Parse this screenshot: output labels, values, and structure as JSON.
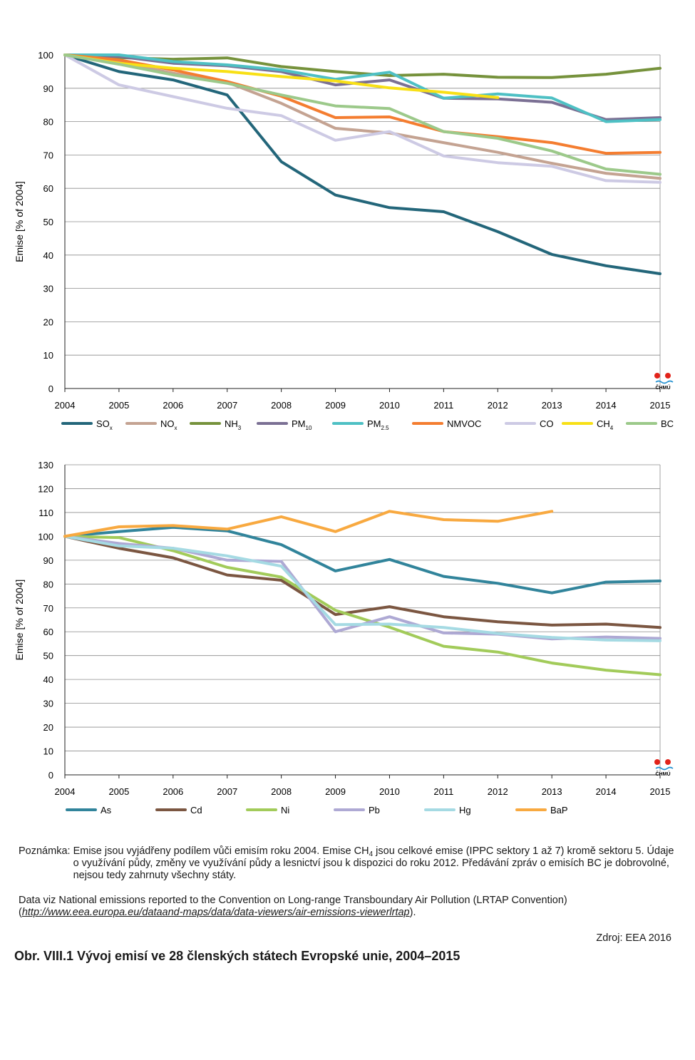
{
  "chart_data": [
    {
      "type": "line",
      "ylabel": "Emise  [% of 2004]",
      "ylim": [
        0,
        100
      ],
      "yticks": [
        0,
        10,
        20,
        30,
        40,
        50,
        60,
        70,
        80,
        90,
        100
      ],
      "x": [
        "2004",
        "2005",
        "2006",
        "2007",
        "2008",
        "2009",
        "2010",
        "2011",
        "2012",
        "2013",
        "2014",
        "2015"
      ],
      "grid": true,
      "legend_position": "bottom",
      "series": [
        {
          "name": "SO",
          "sub": "x",
          "color": "#23667a",
          "values": [
            100,
            95,
            92.5,
            88,
            68,
            58,
            54.2,
            53,
            47,
            40.2,
            36.8,
            34.4
          ]
        },
        {
          "name": "NO",
          "sub": "x",
          "color": "#c4a392",
          "values": [
            100,
            97.8,
            94.5,
            91.8,
            85.5,
            78,
            76.6,
            73.7,
            70.8,
            67.5,
            64.5,
            63
          ]
        },
        {
          "name": "NH",
          "sub": "3",
          "color": "#76923c",
          "values": [
            100,
            99.2,
            98.7,
            99.1,
            96.5,
            95,
            93.8,
            94.2,
            93.3,
            93.2,
            94.2,
            96
          ]
        },
        {
          "name": "PM",
          "sub": "10",
          "color": "#7b7094",
          "values": [
            100,
            99.5,
            97.5,
            96.7,
            95,
            91,
            92.5,
            87,
            86.8,
            85.8,
            80.6,
            81.2
          ]
        },
        {
          "name": "PM",
          "sub": "2.5",
          "color": "#4ec0c4",
          "values": [
            100,
            100,
            98,
            97,
            95.5,
            92.7,
            94.8,
            87,
            88.3,
            87.1,
            80,
            80.6
          ]
        },
        {
          "name": "NMVOC",
          "sub": "",
          "color": "#f47d30",
          "values": [
            100,
            98.5,
            95.5,
            92,
            87.6,
            81.2,
            81.4,
            77,
            75.5,
            73.7,
            70.5,
            70.8
          ]
        },
        {
          "name": "CO",
          "sub": "",
          "color": "#cdcae4",
          "values": [
            100,
            91,
            87.5,
            84,
            81.8,
            74.4,
            77,
            69.7,
            67.7,
            66.6,
            62.3,
            61.8
          ]
        },
        {
          "name": "CH",
          "sub": "4",
          "color": "#f8e016",
          "values": [
            100,
            97.5,
            96,
            95,
            93.5,
            92.2,
            90.1,
            88.8,
            87.2,
            null,
            null,
            null
          ]
        },
        {
          "name": "BC",
          "sub": "",
          "color": "#9cc98a",
          "values": [
            100,
            97.2,
            94,
            91.5,
            88,
            84.7,
            83.9,
            77,
            75,
            71.2,
            65.8,
            64.2
          ]
        }
      ]
    },
    {
      "type": "line",
      "ylabel": "Emise [% of 2004]",
      "ylim": [
        0,
        130
      ],
      "yticks": [
        0,
        10,
        20,
        30,
        40,
        50,
        60,
        70,
        80,
        90,
        100,
        110,
        120,
        130
      ],
      "x": [
        "2004",
        "2005",
        "2006",
        "2007",
        "2008",
        "2009",
        "2010",
        "2011",
        "2012",
        "2013",
        "2014",
        "2015"
      ],
      "grid": true,
      "legend_position": "bottom",
      "series": [
        {
          "name": "As",
          "color": "#31849b",
          "values": [
            100,
            102,
            103.8,
            102.3,
            96.5,
            85.5,
            90.3,
            83.2,
            80.3,
            76.3,
            80.8,
            81.3
          ]
        },
        {
          "name": "Cd",
          "color": "#7b5641",
          "values": [
            100,
            95,
            91,
            83.8,
            81.6,
            67.2,
            70.5,
            66.3,
            64.2,
            62.8,
            63.2,
            61.8
          ]
        },
        {
          "name": "Ni",
          "color": "#a2cb5a",
          "values": [
            100,
            99.5,
            94,
            87,
            82.9,
            69,
            61.9,
            53.9,
            51.5,
            46.9,
            43.9,
            42
          ]
        },
        {
          "name": "Pb",
          "color": "#aea9d4",
          "values": [
            100,
            97,
            95,
            90,
            89.5,
            60,
            66.3,
            59.5,
            59,
            57,
            57.8,
            57.2
          ]
        },
        {
          "name": "Hg",
          "color": "#a5dae3",
          "values": [
            100,
            96,
            95,
            91.8,
            87.5,
            63,
            63.2,
            61.8,
            59.3,
            57.6,
            56.5,
            56.2
          ]
        },
        {
          "name": "BaP",
          "color": "#f8a940",
          "values": [
            100,
            104,
            104.5,
            103,
            108.2,
            102,
            110.5,
            107,
            106.3,
            110.5,
            null,
            null
          ]
        }
      ]
    }
  ],
  "logo": {
    "text": "ČHMÚ"
  },
  "notes": {
    "label": "Poznámka: ",
    "text_1": "Emise jsou vyjádřeny podílem vůči emisím roku 2004. Emise CH",
    "text_sub": "4",
    "text_2": " jsou celkové emise (IPPC sektory 1 až 7) kromě sektoru 5. Údaje o využívání půdy, změny ve využívání půdy a lesnictví jsou k dispozici do roku 2012. Předávání zpráv o emisích BC je dobrovolné, nejsou tedy zahrnuty všechny státy."
  },
  "data_note": {
    "text": "Data viz National emissions reported to the Convention on Long-range Transboundary Air Pollution (LRTAP Convention)",
    "open": "(",
    "url": "http://www.eea.europa.eu/dataand-maps/data/data-viewers/air-emissions-viewerlrtap",
    "close": ")."
  },
  "source": "Zdroj: EEA 2016",
  "caption": "Obr. VIII.1  Vývoj emisí ve 28 členských státech Evropské unie, 2004–2015"
}
